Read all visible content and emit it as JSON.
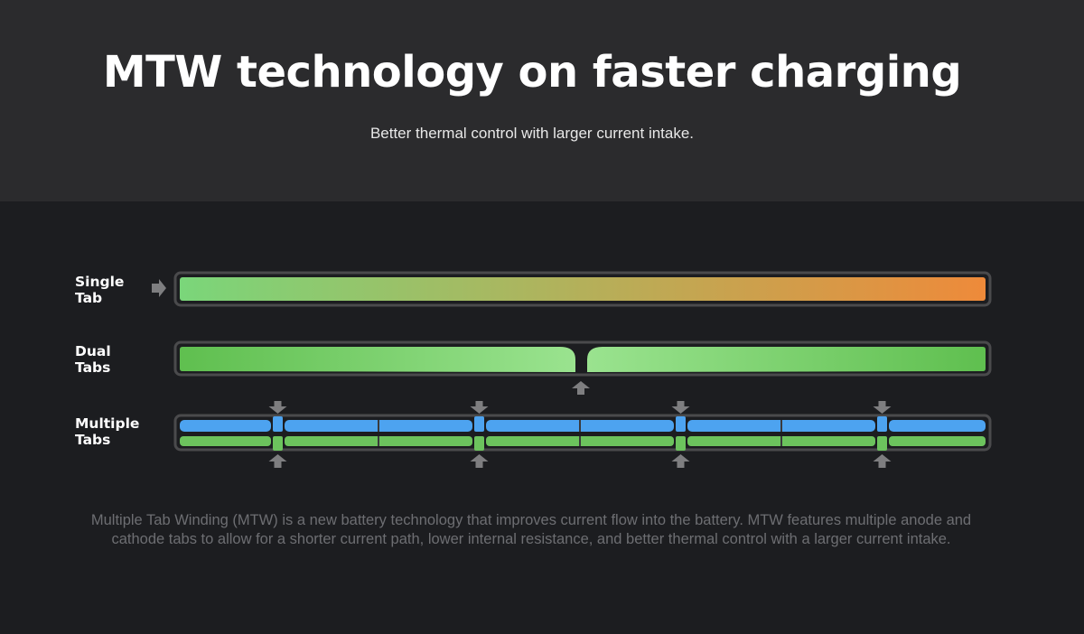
{
  "header": {
    "title": "MTW technology on faster charging",
    "subtitle": "Better thermal control with larger current intake."
  },
  "diagram": {
    "rows": [
      {
        "label": "Single\nTab",
        "tab_count": 1
      },
      {
        "label": "Dual\nTabs",
        "tab_count": 2
      },
      {
        "label": "Multiple\nTabs",
        "tab_count": 4
      }
    ],
    "colors": {
      "cool_green": "#7ad67a",
      "warm_orange": "#ee8a3a",
      "dark_green": "#5fbf4f",
      "light_green": "#9ae38f",
      "anode_blue": "#4da3f0",
      "cathode_green": "#6cc35d",
      "arrow_gray": "#7e7e80",
      "frame_gray": "#4a4a4c"
    }
  },
  "description": "Multiple Tab Winding (MTW) is a new battery technology that improves current flow into the battery. MTW features multiple anode and cathode tabs to allow for a shorter current path, lower internal resistance, and better thermal control with a larger current intake."
}
